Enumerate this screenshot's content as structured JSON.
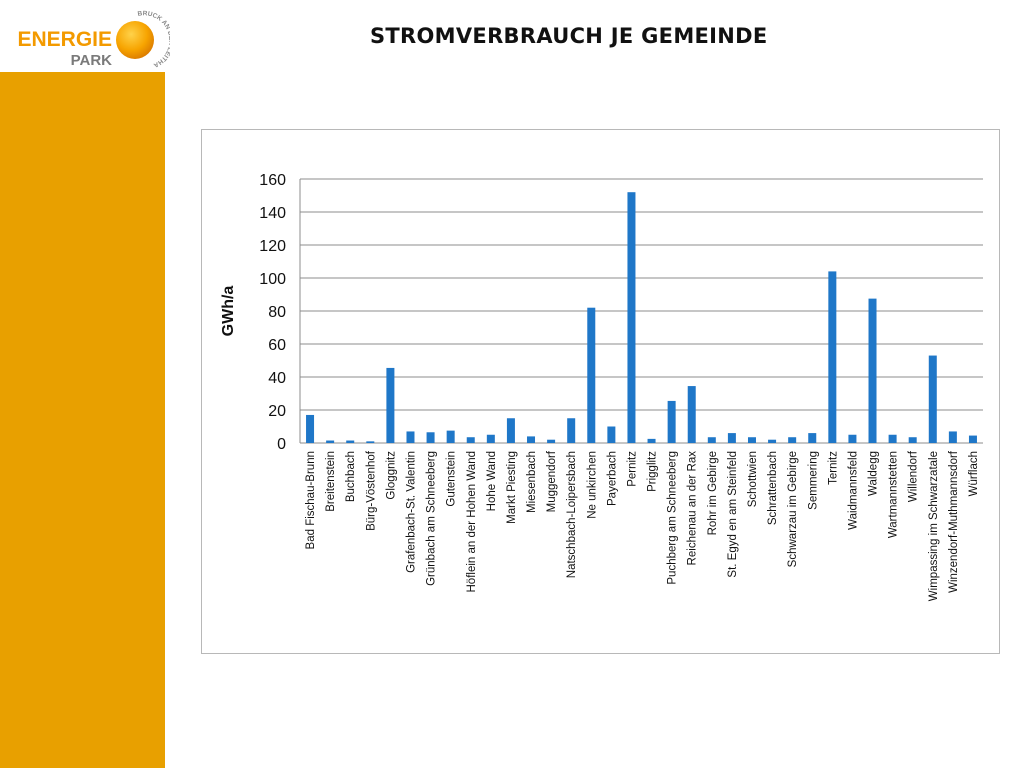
{
  "header": {
    "title": "STROMVERBRAUCH JE GEMEINDE",
    "logo": {
      "word1": "ENERGIE",
      "word2": "PARK",
      "ring_text": "BRUCK AN DER LEITHA"
    }
  },
  "colors": {
    "accent": "#e8a000",
    "bar": "#1f77c8",
    "logo_orange": "#f39a00"
  },
  "chart_data": {
    "type": "bar",
    "title": "",
    "xlabel": "",
    "ylabel": "GWh/a",
    "ylim": [
      0,
      160
    ],
    "yticks": [
      0,
      20,
      40,
      60,
      80,
      100,
      120,
      140,
      160
    ],
    "grid": true,
    "categories": [
      "Bad Fischau-Brunn",
      "Breitenstein",
      "Buchbach",
      "Bürg-Vöstenhof",
      "Gloggnitz",
      "Grafenbach-St. Valentin",
      "Grünbach am Schneeberg",
      "Gutenstein",
      "Höflein an der Hohen Wand",
      "Hohe Wand",
      "Markt Piesting",
      "Miesenbach",
      "Muggendorf",
      "Natschbach-Loipersbach",
      "Ne unkirchen",
      "Payerbach",
      "Pernitz",
      "Prigglitz",
      "Puchberg am Schneeberg",
      "Reichenau an der Rax",
      "Rohr im Gebirge",
      "St. Egyd en am Steinfeld",
      "Schottwien",
      "Schrattenbach",
      "Schwarzau im Gebirge",
      "Semmering",
      "Ternitz",
      "Waidmannsfeld",
      "Waldegg",
      "Wartmannstetten",
      "Willendorf",
      "Wimpassing im Schwarzatale",
      "Winzendorf-Muthmannsdorf",
      "Würflach"
    ],
    "values": [
      17,
      1.5,
      1.5,
      1,
      45.5,
      7,
      6.5,
      7.5,
      3.5,
      5,
      15,
      4,
      2,
      15,
      82,
      10,
      152,
      2.5,
      25.5,
      34.5,
      3.5,
      6,
      3.5,
      2,
      3.5,
      6,
      104,
      5,
      87.5,
      5,
      3.5,
      53,
      7,
      4.5
    ]
  }
}
